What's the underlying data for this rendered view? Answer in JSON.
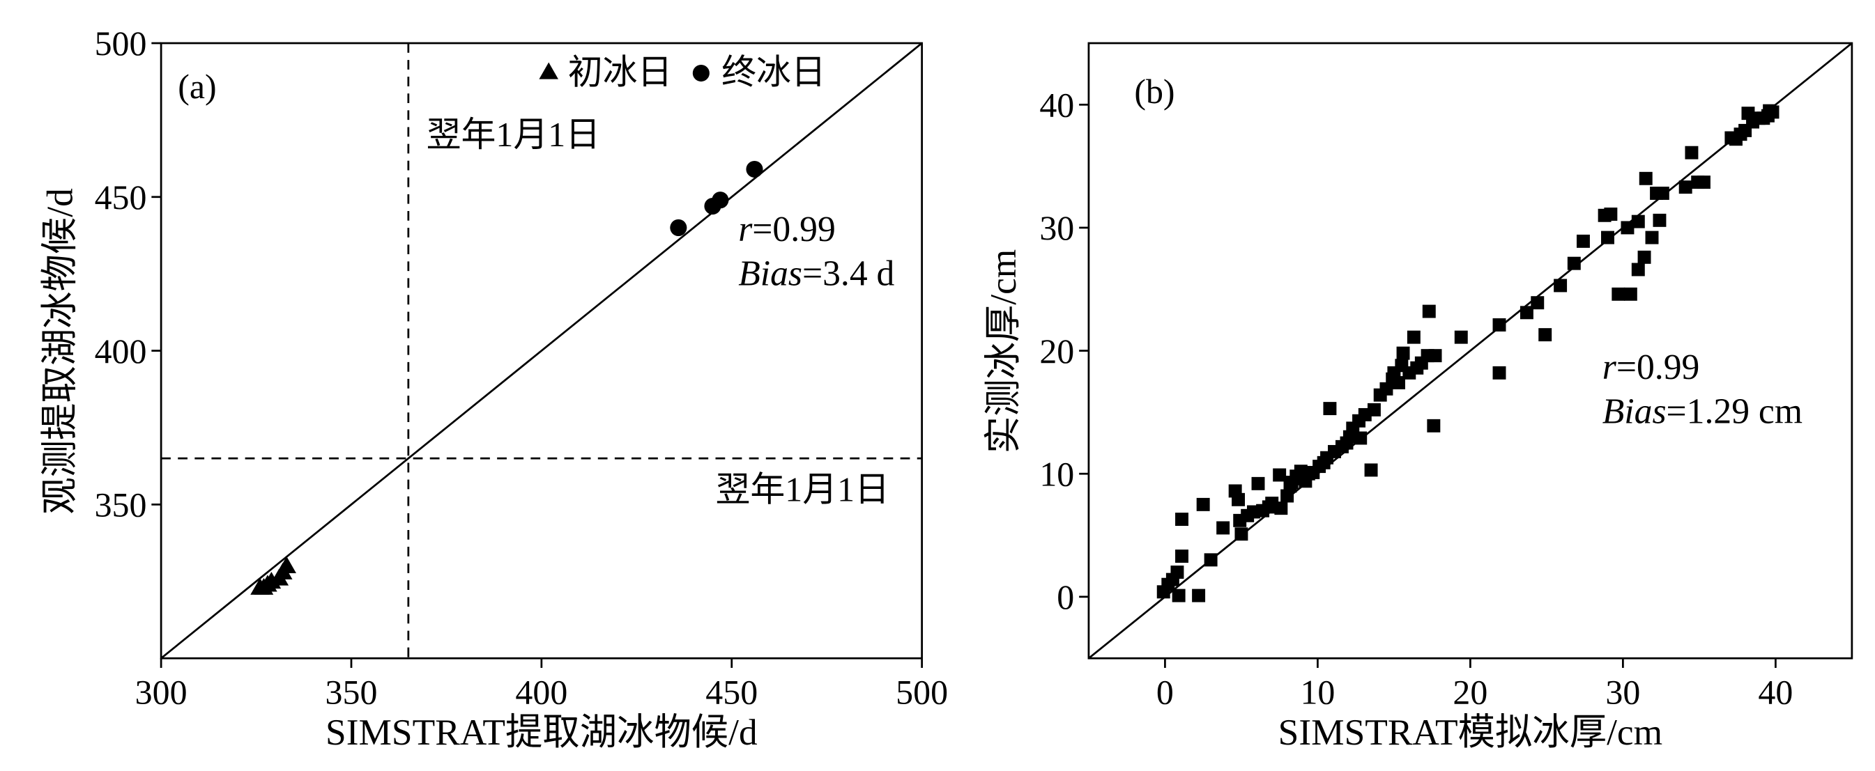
{
  "chart_data": [
    {
      "panel": "(a)",
      "type": "scatter",
      "title": "",
      "xlabel": "SIMSTRAT提取湖冰物候/d",
      "ylabel": "观测提取湖冰物候/d",
      "xlim": [
        300,
        500
      ],
      "ylim": [
        300,
        500
      ],
      "xticks": [
        300,
        350,
        400,
        450,
        500
      ],
      "yticks": [
        350,
        400,
        450,
        500
      ],
      "grid": false,
      "legend": {
        "placement": "top-right"
      },
      "series": [
        {
          "name": "初冰日",
          "marker": "triangle",
          "color": "#000000",
          "points": [
            [
              326,
              323
            ],
            [
              327,
              323
            ],
            [
              328,
              324
            ],
            [
              329,
              325
            ],
            [
              331,
              326
            ],
            [
              332,
              328
            ],
            [
              333,
              330
            ]
          ]
        },
        {
          "name": "终冰日",
          "marker": "circle",
          "color": "#000000",
          "points": [
            [
              436,
              440
            ],
            [
              445,
              447
            ],
            [
              447,
              449
            ],
            [
              456,
              459
            ]
          ]
        }
      ],
      "reference_lines": [
        {
          "type": "identity"
        },
        {
          "type": "vertical",
          "x": 365,
          "label": "翌年1月1日"
        },
        {
          "type": "horizontal",
          "y": 365,
          "label": "翌年1月1日"
        }
      ],
      "stats": {
        "r_symbol": "r",
        "r_value": "=0.99",
        "bias_symbol": "Bias",
        "bias_value": "=3.4 d"
      }
    },
    {
      "panel": "(b)",
      "type": "scatter",
      "title": "",
      "xlabel": "SIMSTRAT模拟冰厚/cm",
      "ylabel": "实测冰厚/cm",
      "xlim": [
        -5,
        45
      ],
      "ylim": [
        -5,
        45
      ],
      "xticks": [
        0,
        10,
        20,
        30,
        40
      ],
      "yticks": [
        0,
        10,
        20,
        30,
        40
      ],
      "grid": false,
      "series": [
        {
          "marker": "square",
          "color": "#000000",
          "points": [
            [
              -0.1,
              0.4
            ],
            [
              0.2,
              1.0
            ],
            [
              0.5,
              1.4
            ],
            [
              0.8,
              2.0
            ],
            [
              0.9,
              0.1
            ],
            [
              2.2,
              0.1
            ],
            [
              1.1,
              3.3
            ],
            [
              1.1,
              6.3
            ],
            [
              2.5,
              7.5
            ],
            [
              3.0,
              3.0
            ],
            [
              3.8,
              5.6
            ],
            [
              4.6,
              8.6
            ],
            [
              4.9,
              6.2
            ],
            [
              5.0,
              5.1
            ],
            [
              4.8,
              7.9
            ],
            [
              5.4,
              6.6
            ],
            [
              5.8,
              6.9
            ],
            [
              6.1,
              9.2
            ],
            [
              6.4,
              7.0
            ],
            [
              6.8,
              7.3
            ],
            [
              7.0,
              7.6
            ],
            [
              7.5,
              9.9
            ],
            [
              7.6,
              7.2
            ],
            [
              8.0,
              8.2
            ],
            [
              8.2,
              9.0
            ],
            [
              8.3,
              9.3
            ],
            [
              8.6,
              9.8
            ],
            [
              8.9,
              10.2
            ],
            [
              9.0,
              9.6
            ],
            [
              9.2,
              9.4
            ],
            [
              9.4,
              10.0
            ],
            [
              9.7,
              10.1
            ],
            [
              10.1,
              10.6
            ],
            [
              10.4,
              10.9
            ],
            [
              10.6,
              11.3
            ],
            [
              10.8,
              15.3
            ],
            [
              11.1,
              11.8
            ],
            [
              11.6,
              12.2
            ],
            [
              11.9,
              12.5
            ],
            [
              12.1,
              13.0
            ],
            [
              12.3,
              13.7
            ],
            [
              12.7,
              14.3
            ],
            [
              12.8,
              12.9
            ],
            [
              13.1,
              14.8
            ],
            [
              13.5,
              10.3
            ],
            [
              13.7,
              15.2
            ],
            [
              14.1,
              16.4
            ],
            [
              14.5,
              16.9
            ],
            [
              14.9,
              17.7
            ],
            [
              15.0,
              18.2
            ],
            [
              15.3,
              17.4
            ],
            [
              15.5,
              18.8
            ],
            [
              15.6,
              19.8
            ],
            [
              16.0,
              18.2
            ],
            [
              16.3,
              21.1
            ],
            [
              16.5,
              18.6
            ],
            [
              16.8,
              19.0
            ],
            [
              17.2,
              19.6
            ],
            [
              17.3,
              23.2
            ],
            [
              17.6,
              13.9
            ],
            [
              17.7,
              19.6
            ],
            [
              19.4,
              21.1
            ],
            [
              21.9,
              18.2
            ],
            [
              21.9,
              22.1
            ],
            [
              23.7,
              23.1
            ],
            [
              24.4,
              23.9
            ],
            [
              24.9,
              21.3
            ],
            [
              25.9,
              25.3
            ],
            [
              26.8,
              27.1
            ],
            [
              27.4,
              28.9
            ],
            [
              28.8,
              31.0
            ],
            [
              29.2,
              31.1
            ],
            [
              29.0,
              29.2
            ],
            [
              29.7,
              24.6
            ],
            [
              30.3,
              30.0
            ],
            [
              30.5,
              24.6
            ],
            [
              31.0,
              30.5
            ],
            [
              31.0,
              26.6
            ],
            [
              31.4,
              27.6
            ],
            [
              31.5,
              34.0
            ],
            [
              31.9,
              29.2
            ],
            [
              32.2,
              32.8
            ],
            [
              32.4,
              30.6
            ],
            [
              32.6,
              32.8
            ],
            [
              34.1,
              33.3
            ],
            [
              34.5,
              36.1
            ],
            [
              34.9,
              33.7
            ],
            [
              35.3,
              33.7
            ],
            [
              37.1,
              37.3
            ],
            [
              37.4,
              37.2
            ],
            [
              37.7,
              37.6
            ],
            [
              38.0,
              37.9
            ],
            [
              38.2,
              39.3
            ],
            [
              38.5,
              38.6
            ],
            [
              38.9,
              38.9
            ],
            [
              39.2,
              38.9
            ],
            [
              39.5,
              39.1
            ],
            [
              39.6,
              39.5
            ],
            [
              39.8,
              39.4
            ]
          ]
        }
      ],
      "reference_lines": [
        {
          "type": "identity"
        }
      ],
      "stats": {
        "r_symbol": "r",
        "r_value": "=0.99",
        "bias_symbol": "Bias",
        "bias_value": "=1.29 cm"
      }
    }
  ]
}
